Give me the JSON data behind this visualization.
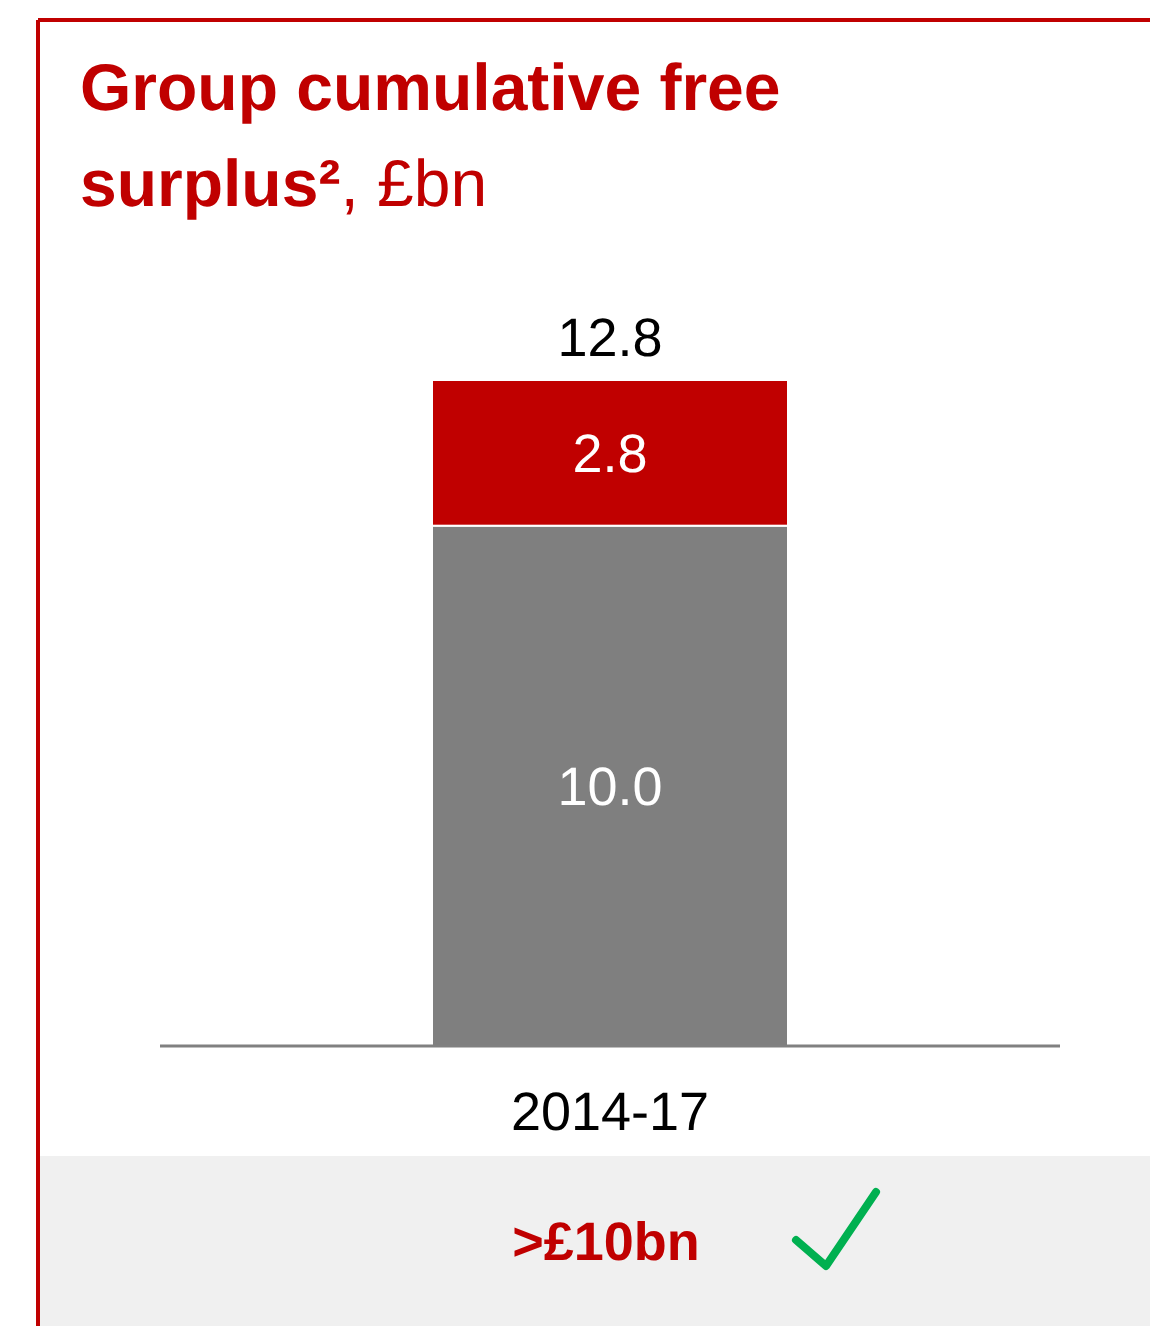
{
  "chart_data": {
    "type": "bar",
    "title": "Group cumulative free surplus²",
    "subtitle": ", £bn",
    "categories": [
      "2014-17"
    ],
    "stacked": true,
    "totals": [
      "12.8"
    ],
    "series": [
      {
        "color": "#7f7f7f",
        "values": [
          10.0
        ],
        "value_labels": [
          "10.0"
        ]
      },
      {
        "color": "#c00000",
        "values": [
          2.8
        ],
        "value_labels": [
          "2.8"
        ]
      }
    ],
    "annotations": [
      ">£10bn"
    ]
  }
}
